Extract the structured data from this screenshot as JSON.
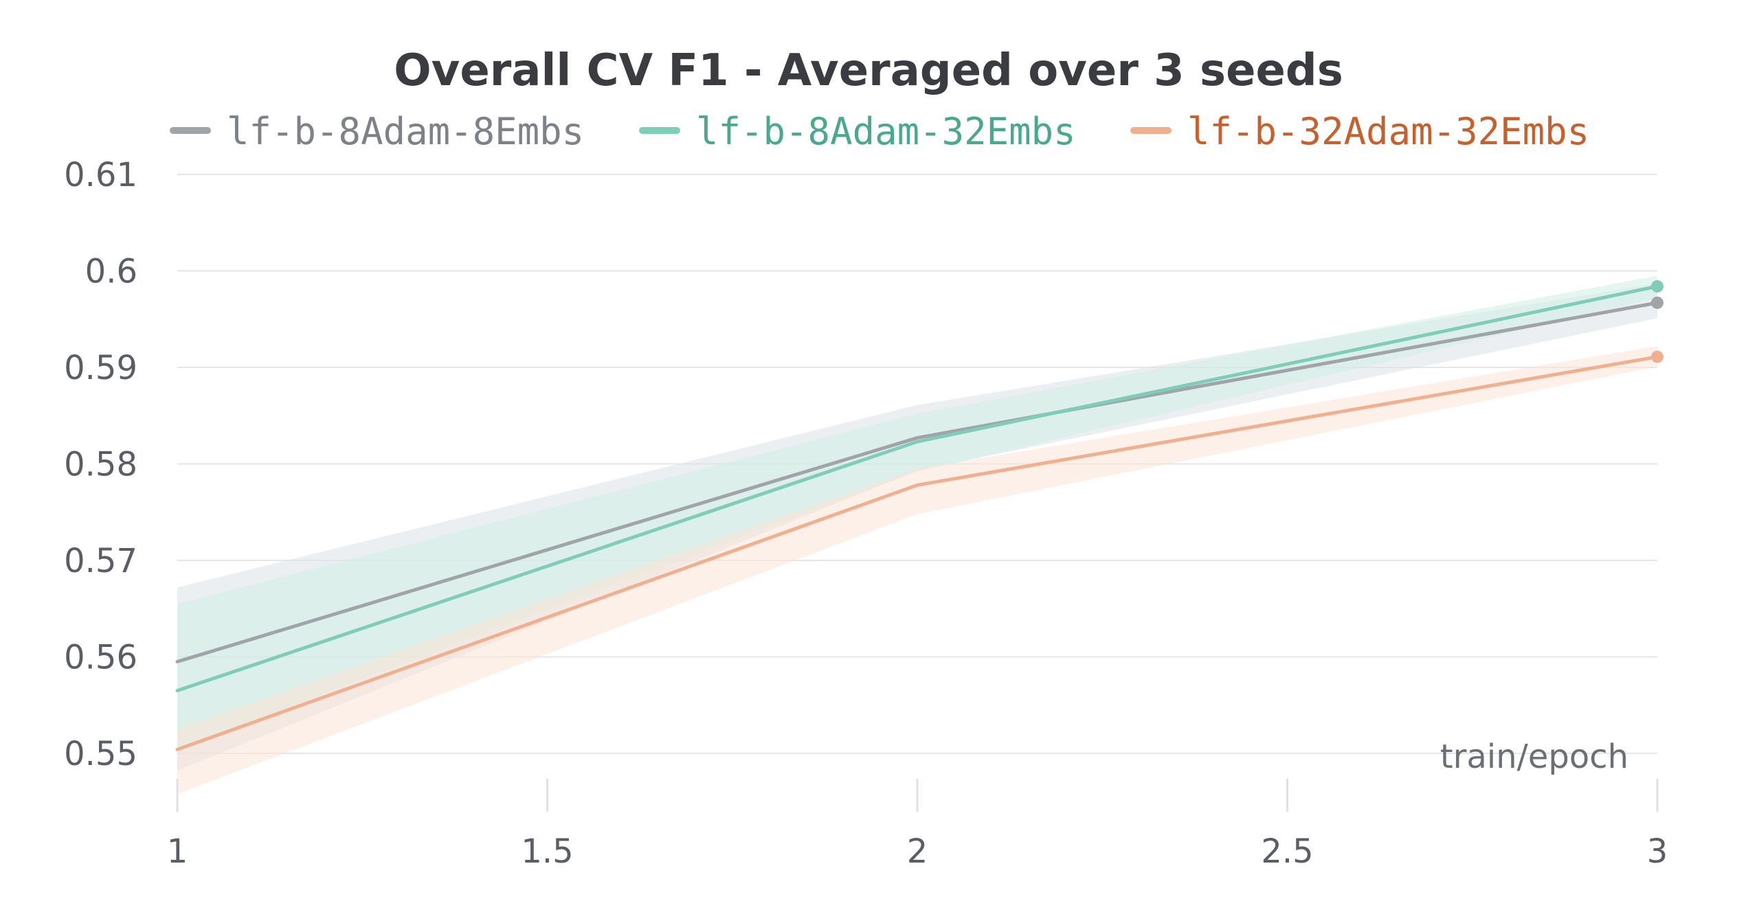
{
  "chart_data": {
    "type": "line",
    "title": "Overall CV F1 - Averaged over 3 seeds",
    "xlabel": "train/epoch",
    "ylabel": "",
    "x": [
      1,
      2,
      3
    ],
    "xlim": [
      1,
      3
    ],
    "ylim": [
      0.55,
      0.61
    ],
    "x_ticks": [
      "1",
      "1.5",
      "2",
      "2.5",
      "3"
    ],
    "y_ticks": [
      "0.55",
      "0.56",
      "0.57",
      "0.58",
      "0.59",
      "0.6",
      "0.61"
    ],
    "grid": true,
    "legend_position": "top",
    "series": [
      {
        "name": "lf-b-8Adam-8Embs",
        "color": "#a0a4a9",
        "label_color": "#7e8288",
        "band_color": "#dde1e6",
        "values": [
          0.5595,
          0.5827,
          0.5967
        ],
        "band_upper": [
          0.5672,
          0.5861,
          0.5987
        ],
        "band_lower": [
          0.5482,
          0.5793,
          0.5951
        ]
      },
      {
        "name": "lf-b-8Adam-32Embs",
        "color": "#7fcdb9",
        "label_color": "#4aa88e",
        "band_color": "#cfeee4",
        "values": [
          0.5565,
          0.5823,
          0.5984
        ],
        "band_upper": [
          0.5655,
          0.5852,
          0.5995
        ],
        "band_lower": [
          0.5505,
          0.5792,
          0.5972
        ]
      },
      {
        "name": "lf-b-32Adam-32Embs",
        "color": "#efb08f",
        "label_color": "#c5602f",
        "band_color": "#fbe3d6",
        "values": [
          0.5504,
          0.5778,
          0.5911
        ],
        "band_upper": [
          0.5525,
          0.5795,
          0.5922
        ],
        "band_lower": [
          0.5458,
          0.5748,
          0.5901
        ]
      }
    ]
  }
}
